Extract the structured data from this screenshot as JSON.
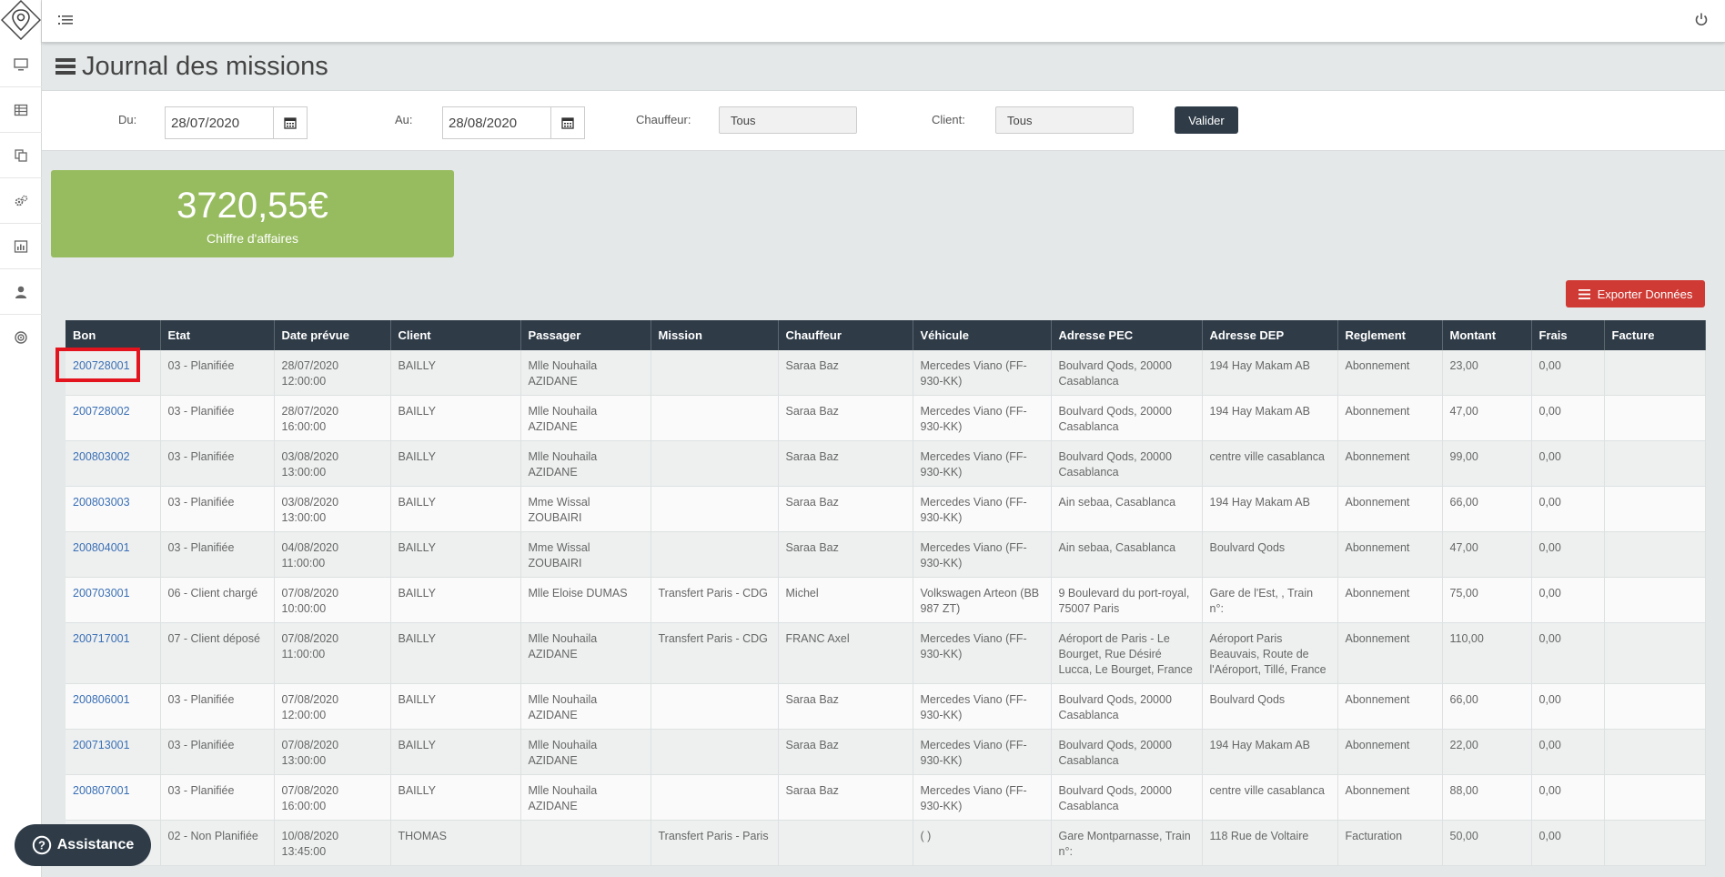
{
  "page": {
    "title": "Journal des missions"
  },
  "sidebar": {
    "items": [
      {
        "icon": "monitor-icon"
      },
      {
        "icon": "table-icon"
      },
      {
        "icon": "copy-icon"
      },
      {
        "icon": "cogs-icon"
      },
      {
        "icon": "bar-chart-icon"
      },
      {
        "icon": "user-icon"
      },
      {
        "icon": "target-icon"
      }
    ]
  },
  "filters": {
    "du_label": "Du:",
    "du_value": "28/07/2020",
    "au_label": "Au:",
    "au_value": "28/08/2020",
    "chauffeur_label": "Chauffeur:",
    "chauffeur_value": "Tous",
    "client_label": "Client:",
    "client_value": "Tous",
    "valider_label": "Valider"
  },
  "kpi": {
    "value": "3720,55€",
    "label": "Chiffre d'affaires"
  },
  "export_label": "Exporter Données",
  "assistance_label": "Assistance",
  "colors": {
    "navy": "#2f3c48",
    "green": "#97bc5f",
    "red": "#cf3a34",
    "link": "#3a6fb5",
    "highlight": "#e3141e"
  },
  "table": {
    "headers": [
      "Bon",
      "Etat",
      "Date prévue",
      "Client",
      "Passager",
      "Mission",
      "Chauffeur",
      "Véhicule",
      "Adresse PEC",
      "Adresse DEP",
      "Reglement",
      "Montant",
      "Frais",
      "Facture"
    ],
    "rows": [
      {
        "bon": "200728001",
        "etat": "03 - Planifiée",
        "date": "28/07/2020 12:00:00",
        "client": "BAILLY",
        "passager": "Mlle Nouhaila AZIDANE",
        "mission": "",
        "chauffeur": "Saraa Baz",
        "vehicule": "Mercedes Viano (FF-930-KK)",
        "pec": "Boulvard Qods, 20000 Casablanca",
        "dep": "194 Hay Makam AB",
        "reglement": "Abonnement",
        "montant": "23,00",
        "frais": "0,00",
        "facture": ""
      },
      {
        "bon": "200728002",
        "etat": "03 - Planifiée",
        "date": "28/07/2020 16:00:00",
        "client": "BAILLY",
        "passager": "Mlle Nouhaila AZIDANE",
        "mission": "",
        "chauffeur": "Saraa Baz",
        "vehicule": "Mercedes Viano (FF-930-KK)",
        "pec": "Boulvard Qods, 20000 Casablanca",
        "dep": "194 Hay Makam AB",
        "reglement": "Abonnement",
        "montant": "47,00",
        "frais": "0,00",
        "facture": ""
      },
      {
        "bon": "200803002",
        "etat": "03 - Planifiée",
        "date": "03/08/2020 13:00:00",
        "client": "BAILLY",
        "passager": "Mlle Nouhaila AZIDANE",
        "mission": "",
        "chauffeur": "Saraa Baz",
        "vehicule": "Mercedes Viano (FF-930-KK)",
        "pec": "Boulvard Qods, 20000 Casablanca",
        "dep": "centre ville casablanca",
        "reglement": "Abonnement",
        "montant": "99,00",
        "frais": "0,00",
        "facture": ""
      },
      {
        "bon": "200803003",
        "etat": "03 - Planifiée",
        "date": "03/08/2020 13:00:00",
        "client": "BAILLY",
        "passager": "Mme Wissal ZOUBAIRI",
        "mission": "",
        "chauffeur": "Saraa Baz",
        "vehicule": "Mercedes Viano (FF-930-KK)",
        "pec": "Ain sebaa, Casablanca",
        "dep": "194 Hay Makam AB",
        "reglement": "Abonnement",
        "montant": "66,00",
        "frais": "0,00",
        "facture": ""
      },
      {
        "bon": "200804001",
        "etat": "03 - Planifiée",
        "date": "04/08/2020 11:00:00",
        "client": "BAILLY",
        "passager": "Mme Wissal ZOUBAIRI",
        "mission": "",
        "chauffeur": "Saraa Baz",
        "vehicule": "Mercedes Viano (FF-930-KK)",
        "pec": "Ain sebaa, Casablanca",
        "dep": "Boulvard Qods",
        "reglement": "Abonnement",
        "montant": "47,00",
        "frais": "0,00",
        "facture": ""
      },
      {
        "bon": "200703001",
        "etat": "06 - Client chargé",
        "date": "07/08/2020 10:00:00",
        "client": "BAILLY",
        "passager": "Mlle Eloise DUMAS",
        "mission": "Transfert Paris - CDG",
        "chauffeur": "Michel",
        "vehicule": "Volkswagen Arteon (BB 987 ZT)",
        "pec": "9 Boulevard du port-royal, 75007 Paris",
        "dep": "Gare de l'Est, , Train n°:",
        "reglement": "Abonnement",
        "montant": "75,00",
        "frais": "0,00",
        "facture": ""
      },
      {
        "bon": "200717001",
        "etat": "07 - Client déposé",
        "date": "07/08/2020 11:00:00",
        "client": "BAILLY",
        "passager": "Mlle Nouhaila AZIDANE",
        "mission": "Transfert Paris - CDG",
        "chauffeur": "FRANC Axel",
        "vehicule": "Mercedes Viano (FF-930-KK)",
        "pec": "Aéroport de Paris - Le Bourget, Rue Désiré Lucca, Le Bourget, France",
        "dep": "Aéroport Paris Beauvais, Route de l'Aéroport, Tillé, France",
        "reglement": "Abonnement",
        "montant": "110,00",
        "frais": "0,00",
        "facture": ""
      },
      {
        "bon": "200806001",
        "etat": "03 - Planifiée",
        "date": "07/08/2020 12:00:00",
        "client": "BAILLY",
        "passager": "Mlle Nouhaila AZIDANE",
        "mission": "",
        "chauffeur": "Saraa Baz",
        "vehicule": "Mercedes Viano (FF-930-KK)",
        "pec": "Boulvard Qods, 20000 Casablanca",
        "dep": "Boulvard Qods",
        "reglement": "Abonnement",
        "montant": "66,00",
        "frais": "0,00",
        "facture": ""
      },
      {
        "bon": "200713001",
        "etat": "03 - Planifiée",
        "date": "07/08/2020 13:00:00",
        "client": "BAILLY",
        "passager": "Mlle Nouhaila AZIDANE",
        "mission": "",
        "chauffeur": "Saraa Baz",
        "vehicule": "Mercedes Viano (FF-930-KK)",
        "pec": "Boulvard Qods, 20000 Casablanca",
        "dep": "194 Hay Makam AB",
        "reglement": "Abonnement",
        "montant": "22,00",
        "frais": "0,00",
        "facture": ""
      },
      {
        "bon": "200807001",
        "etat": "03 - Planifiée",
        "date": "07/08/2020 16:00:00",
        "client": "BAILLY",
        "passager": "Mlle Nouhaila AZIDANE",
        "mission": "",
        "chauffeur": "Saraa Baz",
        "vehicule": "Mercedes Viano (FF-930-KK)",
        "pec": "Boulvard Qods, 20000 Casablanca",
        "dep": "centre ville casablanca",
        "reglement": "Abonnement",
        "montant": "88,00",
        "frais": "0,00",
        "facture": ""
      },
      {
        "bon": "",
        "etat": "02 - Non Planifiée",
        "date": "10/08/2020 13:45:00",
        "client": "THOMAS",
        "passager": "",
        "mission": "Transfert Paris - Paris",
        "chauffeur": "",
        "vehicule": "( )",
        "pec": "Gare Montparnasse, Train n°:",
        "dep": "118 Rue de Voltaire",
        "reglement": "Facturation",
        "montant": "50,00",
        "frais": "0,00",
        "facture": ""
      }
    ]
  }
}
